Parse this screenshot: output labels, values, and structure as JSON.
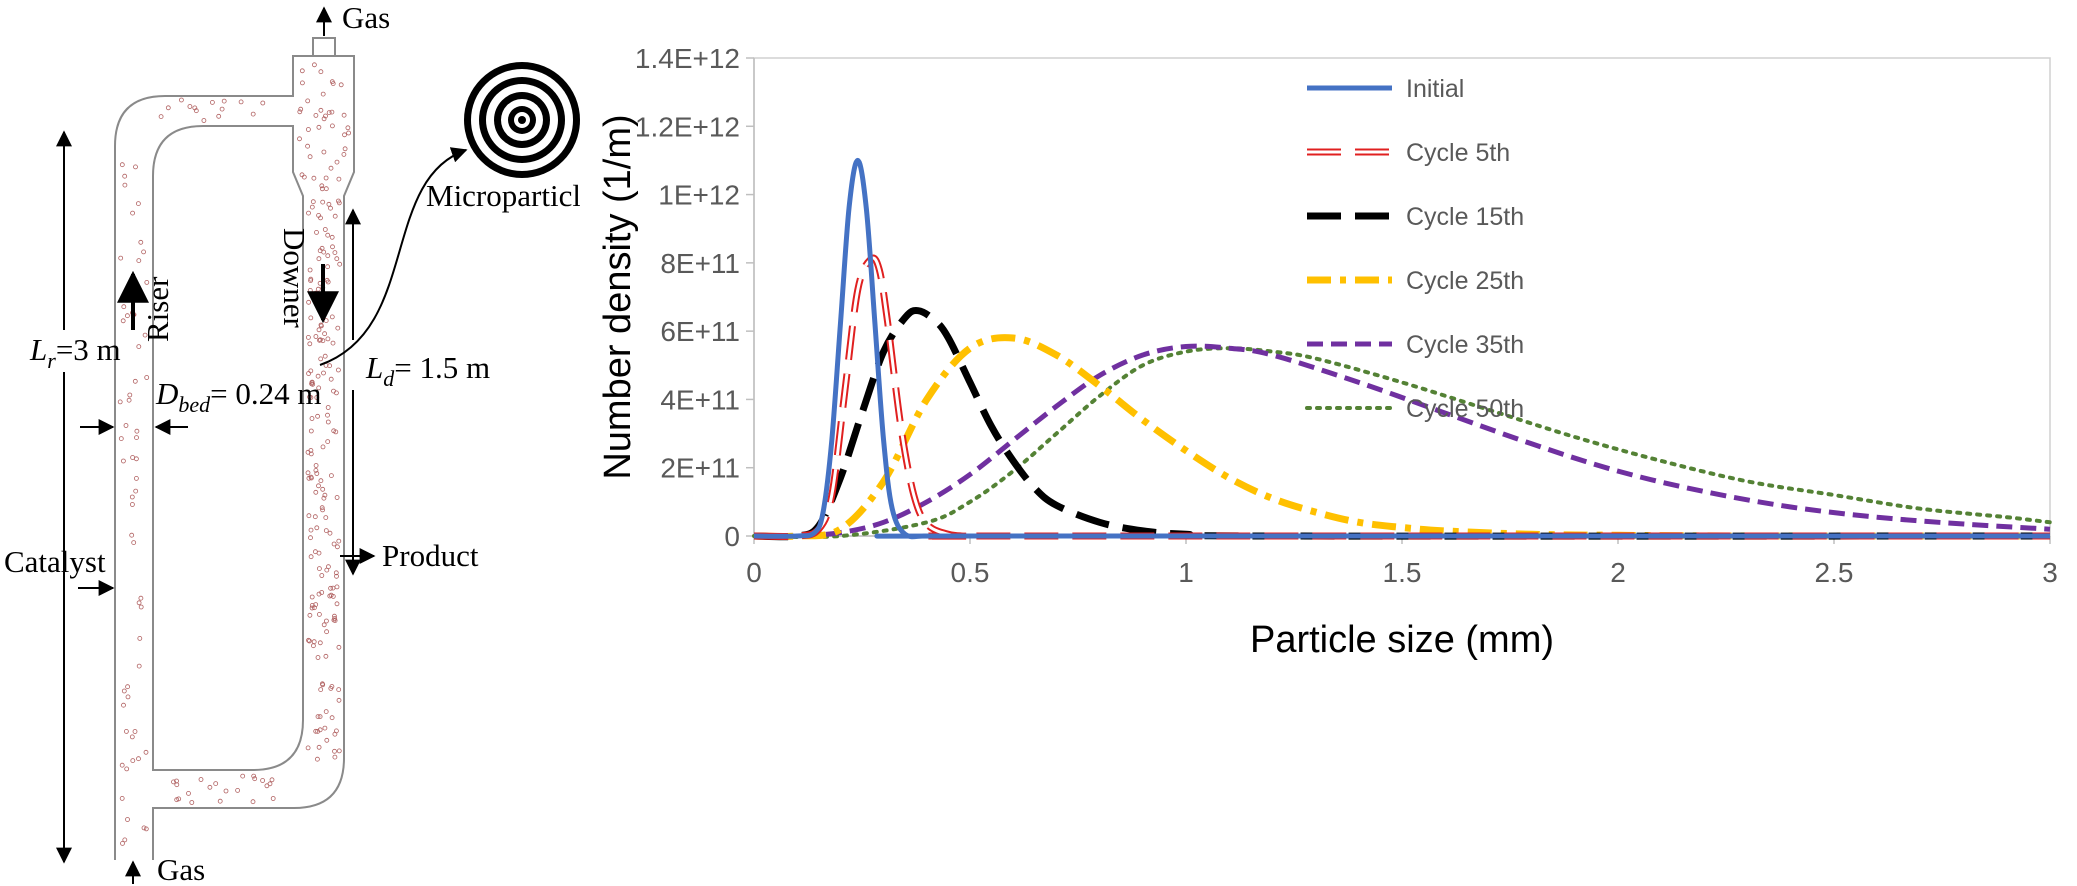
{
  "diagram": {
    "labels": {
      "gas_top": "Gas",
      "gas_bottom": "Gas",
      "riser": "Riser",
      "downer": "Downer",
      "microparticle": "Microparticle",
      "catalyst": "Catalyst",
      "product": "Product"
    },
    "riser_length": {
      "symbol": "L",
      "sub": "r",
      "value": "=3 m"
    },
    "downer_length": {
      "symbol": "L",
      "sub": "d",
      "value": "= 1.5 m"
    },
    "bed_diameter": {
      "symbol": "D",
      "sub": "bed",
      "value": "= 0.24 m"
    }
  },
  "chart_data": {
    "type": "line",
    "title": "",
    "xlabel": "Particle size (mm)",
    "ylabel": "Number density (1/m)",
    "xlim": [
      0,
      3
    ],
    "ylim": [
      0,
      1400000000000.0
    ],
    "xticks": [
      "0",
      "0.5",
      "1",
      "1.5",
      "2",
      "2.5",
      "3"
    ],
    "yticks": [
      "0",
      "2E+11",
      "4E+11",
      "6E+11",
      "8E+11",
      "1E+12",
      "1.2E+12",
      "1.4E+12"
    ],
    "grid": false,
    "legend_position": "top-right",
    "series": [
      {
        "name": "Initial",
        "color": "#4472C4",
        "x": [
          0.1,
          0.14,
          0.16,
          0.18,
          0.2,
          0.22,
          0.24,
          0.26,
          0.28,
          0.3,
          0.32,
          0.35,
          0.4,
          0.5
        ],
        "y": [
          0,
          10000000000.0,
          70000000000.0,
          280000000000.0,
          620000000000.0,
          960000000000.0,
          1100000000000.0,
          960000000000.0,
          620000000000.0,
          280000000000.0,
          80000000000.0,
          5000000000.0,
          0,
          0
        ]
      },
      {
        "name": "Cycle 5th",
        "color": "#E02020",
        "x": [
          0.1,
          0.15,
          0.18,
          0.21,
          0.24,
          0.27,
          0.29,
          0.31,
          0.34,
          0.37,
          0.4,
          0.45,
          0.5,
          0.6
        ],
        "y": [
          0,
          20000000000.0,
          120000000000.0,
          420000000000.0,
          720000000000.0,
          810000000000.0,
          780000000000.0,
          620000000000.0,
          320000000000.0,
          120000000000.0,
          35000000000.0,
          5000000000.0,
          0,
          0
        ]
      },
      {
        "name": "Cycle 15th",
        "color": "#000000",
        "x": [
          0.1,
          0.15,
          0.2,
          0.25,
          0.3,
          0.35,
          0.38,
          0.42,
          0.45,
          0.5,
          0.55,
          0.6,
          0.65,
          0.7,
          0.8,
          0.9,
          1.0,
          1.2
        ],
        "y": [
          0,
          30000000000.0,
          170000000000.0,
          360000000000.0,
          540000000000.0,
          640000000000.0,
          660000000000.0,
          630000000000.0,
          580000000000.0,
          450000000000.0,
          320000000000.0,
          220000000000.0,
          140000000000.0,
          90000000000.0,
          40000000000.0,
          15000000000.0,
          5000000000.0,
          0
        ]
      },
      {
        "name": "Cycle 25th",
        "color": "#FFC000",
        "x": [
          0.1,
          0.2,
          0.3,
          0.4,
          0.5,
          0.6,
          0.7,
          0.8,
          0.9,
          1.0,
          1.1,
          1.2,
          1.3,
          1.4,
          1.5,
          1.6,
          1.8,
          2.0,
          2.3
        ],
        "y": [
          0,
          20000000000.0,
          160000000000.0,
          400000000000.0,
          550000000000.0,
          580000000000.0,
          530000000000.0,
          440000000000.0,
          340000000000.0,
          250000000000.0,
          170000000000.0,
          110000000000.0,
          70000000000.0,
          40000000000.0,
          25000000000.0,
          15000000000.0,
          5000000000.0,
          2000000000.0,
          0
        ]
      },
      {
        "name": "Cycle 35th",
        "color": "#7030A0",
        "x": [
          0.1,
          0.2,
          0.3,
          0.4,
          0.5,
          0.6,
          0.7,
          0.8,
          0.9,
          1.0,
          1.1,
          1.2,
          1.4,
          1.6,
          1.8,
          2.0,
          2.2,
          2.4,
          2.6,
          2.8,
          3.0
        ],
        "y": [
          0,
          10000000000.0,
          40000000000.0,
          100000000000.0,
          180000000000.0,
          280000000000.0,
          380000000000.0,
          470000000000.0,
          530000000000.0,
          555000000000.0,
          550000000000.0,
          530000000000.0,
          450000000000.0,
          360000000000.0,
          270000000000.0,
          190000000000.0,
          130000000000.0,
          85000000000.0,
          55000000000.0,
          35000000000.0,
          20000000000.0
        ]
      },
      {
        "name": "Cycle 50th",
        "color": "#548235",
        "x": [
          0.2,
          0.4,
          0.5,
          0.6,
          0.7,
          0.8,
          0.9,
          1.0,
          1.1,
          1.2,
          1.3,
          1.5,
          1.7,
          1.9,
          2.1,
          2.3,
          2.5,
          2.7,
          2.9,
          3.0
        ],
        "y": [
          0,
          40000000000.0,
          100000000000.0,
          190000000000.0,
          300000000000.0,
          410000000000.0,
          500000000000.0,
          540000000000.0,
          550000000000.0,
          540000000000.0,
          520000000000.0,
          450000000000.0,
          370000000000.0,
          290000000000.0,
          220000000000.0,
          160000000000.0,
          120000000000.0,
          80000000000.0,
          55000000000.0,
          40000000000.0
        ]
      }
    ]
  }
}
